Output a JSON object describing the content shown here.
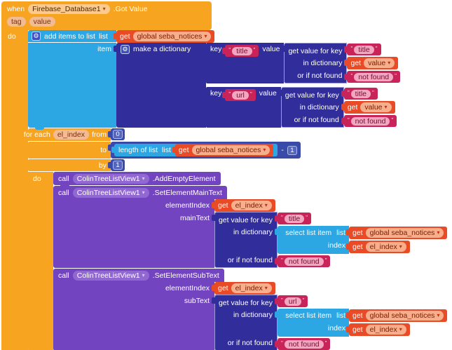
{
  "ui": {
    "quote": "\"",
    "dropdown_arrow": "▾",
    "gear": "⚙"
  },
  "colors": {
    "event_orange": "#F7A421",
    "list_blue": "#2CA7E3",
    "dictionary_indigo": "#312E9B",
    "math_navy": "#3A4AA8",
    "component_purple": "#7344BF",
    "text_pink": "#C92459",
    "variable_red": "#E84B26"
  },
  "when_block": {
    "keyword": "when",
    "component": "Firebase_Database1",
    "event": ".Got Value",
    "params": [
      "tag",
      "value"
    ],
    "do_label": "do"
  },
  "add_items_block": {
    "label": "add items to list",
    "list_label": "list",
    "item_label": "item",
    "list_value": {
      "keyword": "get",
      "variable": "global seba_notices"
    }
  },
  "dictionary_block": {
    "label": "make a dictionary",
    "pairs": [
      {
        "key_label": "key",
        "key_text": "title",
        "value_label": "value",
        "value": {
          "key_row_label": "get value for key",
          "key_text": "title",
          "dict_row_label": "in dictionary",
          "dict_value": {
            "keyword": "get",
            "variable": "value"
          },
          "fallback_row_label": "or if not found",
          "fallback_text": "not found"
        }
      },
      {
        "key_label": "key",
        "key_text": "url",
        "value_label": "value",
        "value": {
          "key_row_label": "get value for key",
          "key_text": "title",
          "dict_row_label": "in dictionary",
          "dict_value": {
            "keyword": "get",
            "variable": "value"
          },
          "fallback_row_label": "or if not found",
          "fallback_text": "not found"
        }
      }
    ]
  },
  "foreach_block": {
    "label": "for each",
    "variable": "el_index",
    "from_label": "from",
    "from_value": "0",
    "to_label": "to",
    "to_value": {
      "length_label": "length of list",
      "list_label": "list",
      "list_value": {
        "keyword": "get",
        "variable": "global seba_notices"
      },
      "operator": "-",
      "operand": "1"
    },
    "by_label": "by",
    "by_value": "1",
    "do_label": "do"
  },
  "calls": [
    {
      "keyword": "call",
      "component": "ColinTreeListView1",
      "method": ".AddEmptyElement"
    },
    {
      "keyword": "call",
      "component": "ColinTreeListView1",
      "method": ".SetElementMainText",
      "element_index_label": "elementIndex",
      "element_index_value": {
        "keyword": "get",
        "variable": "el_index"
      },
      "text_label": "mainText",
      "text_value": {
        "key_row_label": "get value for key",
        "key_text": "title",
        "dict_row_label": "in dictionary",
        "dict_value": {
          "label": "select list item",
          "list_label": "list",
          "list_value": {
            "keyword": "get",
            "variable": "global seba_notices"
          },
          "index_label": "index",
          "index_value": {
            "keyword": "get",
            "variable": "el_index"
          }
        },
        "fallback_row_label": "or if not found",
        "fallback_text": "not found"
      }
    },
    {
      "keyword": "call",
      "component": "ColinTreeListView1",
      "method": ".SetElementSubText",
      "element_index_label": "elementIndex",
      "element_index_value": {
        "keyword": "get",
        "variable": "el_index"
      },
      "text_label": "subText",
      "text_value": {
        "key_row_label": "get value for key",
        "key_text": "url",
        "dict_row_label": "in dictionary",
        "dict_value": {
          "label": "select list item",
          "list_label": "list",
          "list_value": {
            "keyword": "get",
            "variable": "global seba_notices"
          },
          "index_label": "index",
          "index_value": {
            "keyword": "get",
            "variable": "el_index"
          }
        },
        "fallback_row_label": "or if not found",
        "fallback_text": "not found"
      }
    }
  ]
}
